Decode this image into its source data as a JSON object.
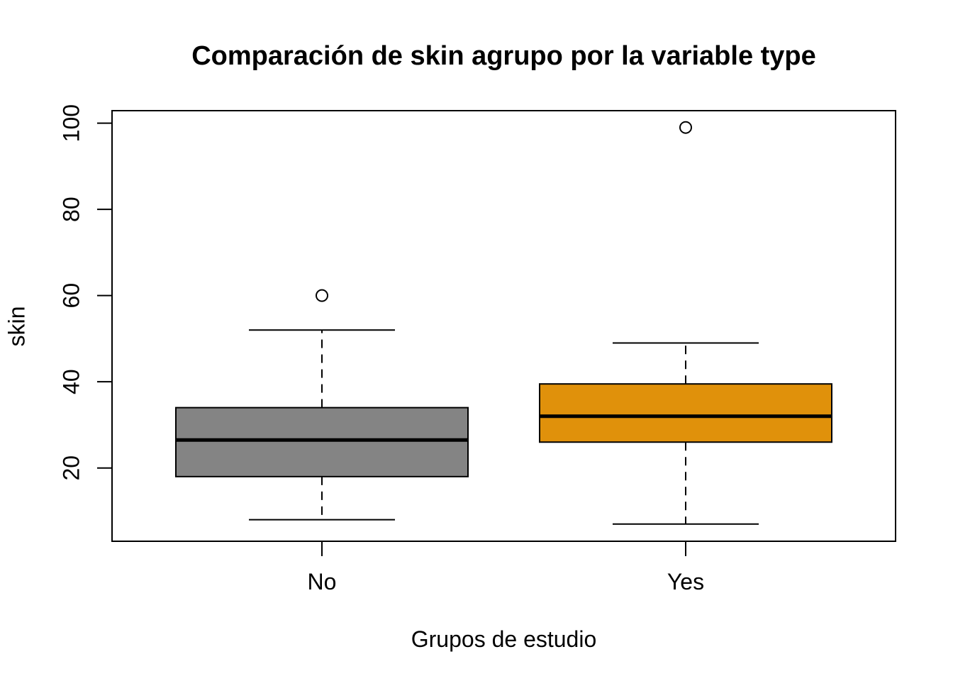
{
  "chart_data": {
    "type": "boxplot",
    "title": "Comparación de skin agrupo por la variable type",
    "xlabel": "Grupos de estudio",
    "ylabel": "skin",
    "ylim": [
      3,
      102.9
    ],
    "yticks": [
      20,
      40,
      60,
      80,
      100
    ],
    "grid": false,
    "legend": null,
    "categories": [
      "No",
      "Yes"
    ],
    "groups": [
      {
        "label": "No",
        "fill": "#848484",
        "whisker_low": 8,
        "q1": 18,
        "median": 26.5,
        "q3": 34,
        "whisker_high": 52,
        "outliers": [
          60
        ]
      },
      {
        "label": "Yes",
        "fill": "#E0910B",
        "whisker_low": 7,
        "q1": 26,
        "median": 32,
        "q3": 39.5,
        "whisker_high": 49,
        "outliers": [
          99
        ]
      }
    ]
  },
  "colors": {
    "line": "#000000",
    "background": "#FFFFFF",
    "outlier_fill": "#FFFFFF"
  }
}
